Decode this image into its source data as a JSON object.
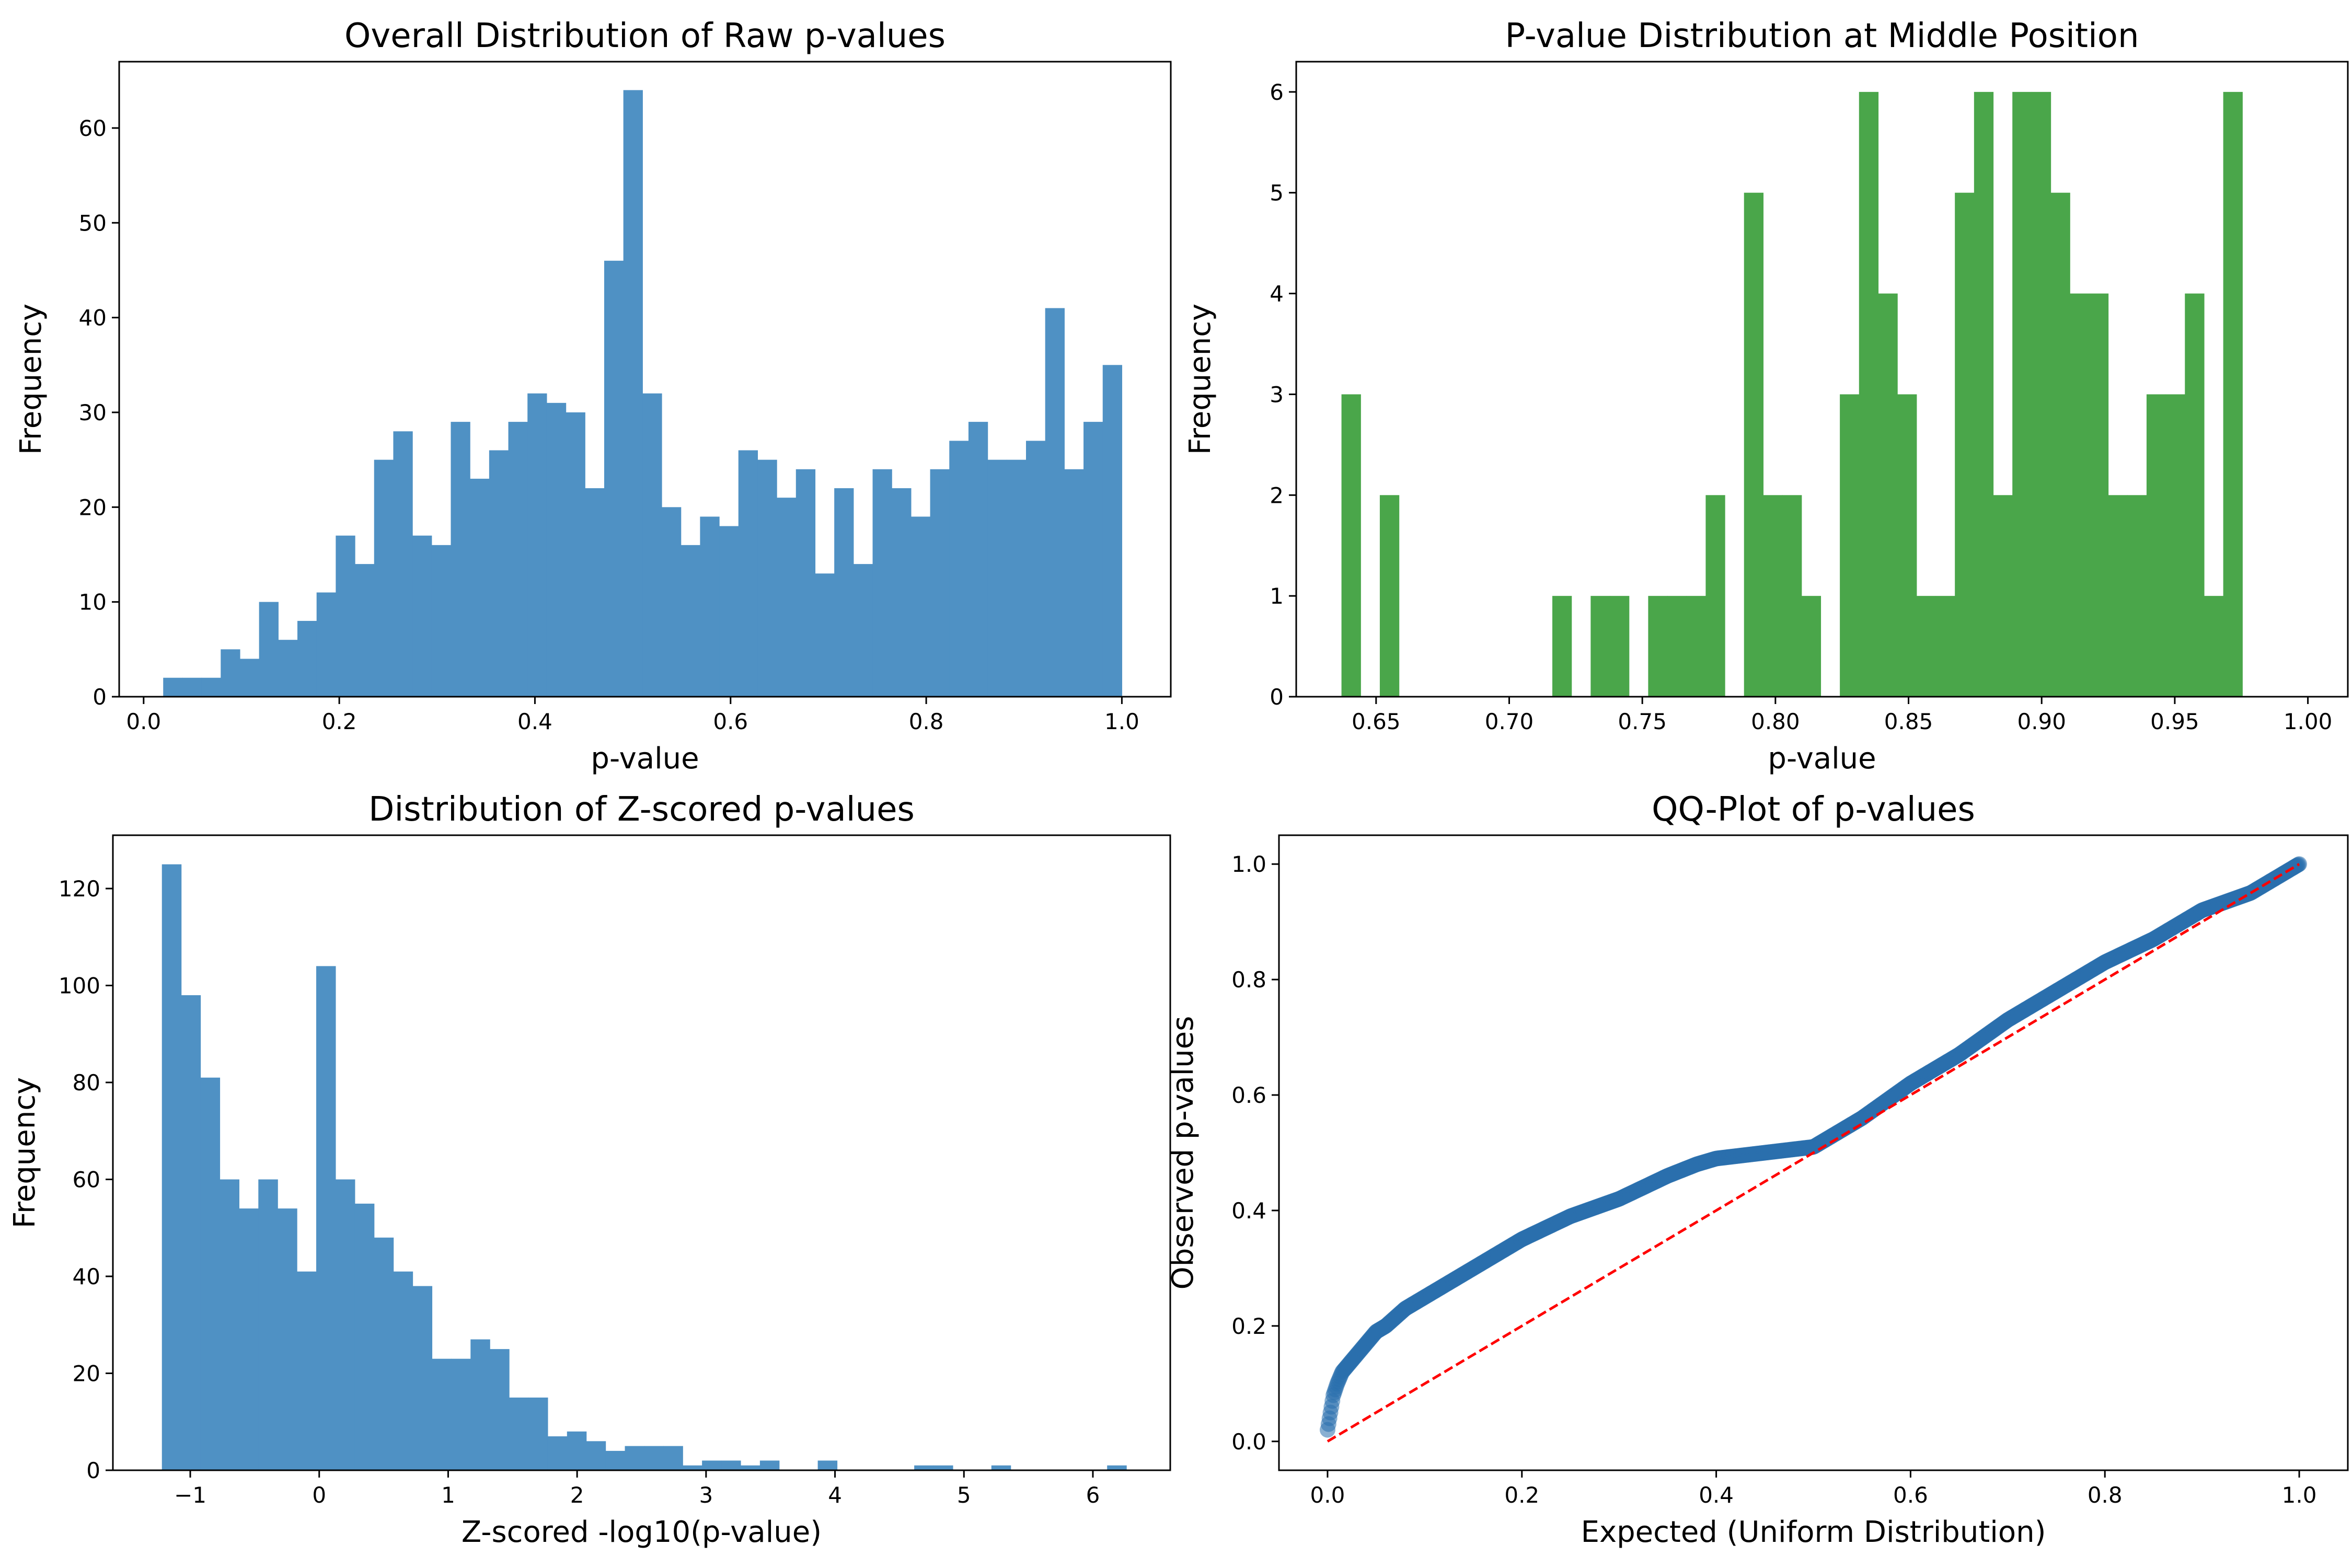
{
  "figure": {
    "background": "#ffffff"
  },
  "chart_data": [
    {
      "id": "raw",
      "type": "bar",
      "title": "Overall Distribution of Raw p-values",
      "xlabel": "p-value",
      "ylabel": "Frequency",
      "color": "#4f91c4",
      "grid": false,
      "xlim": [
        -0.025,
        1.05
      ],
      "ylim": [
        0,
        67
      ],
      "xticks": [
        0.0,
        0.2,
        0.4,
        0.6,
        0.8,
        1.0
      ],
      "xtick_labels": [
        "0.0",
        "0.2",
        "0.4",
        "0.6",
        "0.8",
        "1.0"
      ],
      "yticks": [
        0,
        10,
        20,
        30,
        40,
        50,
        60
      ],
      "ytick_labels": [
        "0",
        "10",
        "20",
        "30",
        "40",
        "50",
        "60"
      ],
      "bins": {
        "start": 0.02,
        "width": 0.0196
      },
      "values": [
        2,
        2,
        2,
        5,
        4,
        10,
        6,
        8,
        11,
        17,
        14,
        25,
        28,
        17,
        16,
        29,
        23,
        26,
        29,
        32,
        31,
        30,
        22,
        46,
        64,
        32,
        20,
        16,
        19,
        18,
        26,
        25,
        21,
        24,
        13,
        22,
        14,
        24,
        22,
        19,
        24,
        27,
        29,
        25,
        25,
        27,
        41,
        24,
        29,
        35
      ]
    },
    {
      "id": "middle",
      "type": "bar",
      "title": "P-value Distribution at Middle Position",
      "xlabel": "p-value",
      "ylabel": "Frequency",
      "color": "#4aa64a",
      "grid": false,
      "xlim": [
        0.62,
        1.015
      ],
      "ylim": [
        0,
        6.3
      ],
      "xticks": [
        0.65,
        0.7,
        0.75,
        0.8,
        0.85,
        0.9,
        0.95,
        1.0
      ],
      "xtick_labels": [
        "0.65",
        "0.70",
        "0.75",
        "0.80",
        "0.85",
        "0.90",
        "0.95",
        "1.00"
      ],
      "yticks": [
        0,
        1,
        2,
        3,
        4,
        5,
        6
      ],
      "ytick_labels": [
        "0",
        "1",
        "2",
        "3",
        "4",
        "5",
        "6"
      ],
      "bins": {
        "start": 0.637,
        "width": 0.0072
      },
      "values": [
        3,
        0,
        2,
        0,
        0,
        0,
        0,
        0,
        0,
        0,
        0,
        1,
        0,
        1,
        1,
        0,
        1,
        1,
        1,
        2,
        0,
        5,
        2,
        2,
        1,
        0,
        3,
        6,
        4,
        3,
        1,
        1,
        5,
        6,
        2,
        6,
        6,
        5,
        4,
        4,
        2,
        2,
        3,
        3,
        4,
        1,
        6
      ]
    },
    {
      "id": "zscore",
      "type": "bar",
      "title": "Distribution of Z-scored p-values",
      "xlabel": "Z-scored -log10(p-value)",
      "ylabel": "Frequency",
      "color": "#4f91c4",
      "grid": false,
      "xlim": [
        -1.6,
        6.6
      ],
      "ylim": [
        0,
        131
      ],
      "xticks": [
        -1,
        0,
        1,
        2,
        3,
        4,
        5,
        6
      ],
      "xtick_labels": [
        "−1",
        "0",
        "1",
        "2",
        "3",
        "4",
        "5",
        "6"
      ],
      "yticks": [
        0,
        20,
        40,
        60,
        80,
        100,
        120
      ],
      "ytick_labels": [
        "0",
        "20",
        "40",
        "60",
        "80",
        "100",
        "120"
      ],
      "bins": {
        "start": -1.22,
        "width": 0.1496
      },
      "values": [
        125,
        98,
        81,
        60,
        54,
        60,
        54,
        41,
        104,
        60,
        55,
        48,
        41,
        38,
        23,
        23,
        27,
        25,
        15,
        15,
        7,
        8,
        6,
        4,
        5,
        5,
        5,
        1,
        2,
        2,
        1,
        2,
        0,
        0,
        2,
        0,
        0,
        0,
        0,
        1,
        1,
        0,
        0,
        1,
        0,
        0,
        0,
        0,
        0,
        1
      ]
    },
    {
      "id": "qq",
      "type": "scatter",
      "title": "QQ-Plot of p-values",
      "xlabel": "Expected (Uniform Distribution)",
      "ylabel": "Observed p-values",
      "color": "#2a6fad",
      "reference_line_color": "#ff0000",
      "reference_line": {
        "x": [
          0,
          1
        ],
        "y": [
          0,
          1
        ],
        "style": "dashed"
      },
      "grid": false,
      "xlim": [
        -0.05,
        1.05
      ],
      "ylim": [
        -0.05,
        1.05
      ],
      "xticks": [
        0.0,
        0.2,
        0.4,
        0.6,
        0.8,
        1.0
      ],
      "xtick_labels": [
        "0.0",
        "0.2",
        "0.4",
        "0.6",
        "0.8",
        "1.0"
      ],
      "yticks": [
        0.0,
        0.2,
        0.4,
        0.6,
        0.8,
        1.0
      ],
      "ytick_labels": [
        "0.0",
        "0.2",
        "0.4",
        "0.6",
        "0.8",
        "1.0"
      ],
      "curve": {
        "x": [
          0.0,
          0.003,
          0.006,
          0.01,
          0.015,
          0.02,
          0.03,
          0.04,
          0.05,
          0.06,
          0.08,
          0.1,
          0.12,
          0.15,
          0.18,
          0.2,
          0.25,
          0.3,
          0.35,
          0.38,
          0.4,
          0.45,
          0.5,
          0.52,
          0.55,
          0.6,
          0.65,
          0.7,
          0.75,
          0.8,
          0.85,
          0.9,
          0.95,
          0.98,
          1.0
        ],
        "y": [
          0.02,
          0.05,
          0.08,
          0.1,
          0.12,
          0.13,
          0.15,
          0.17,
          0.19,
          0.2,
          0.23,
          0.25,
          0.27,
          0.3,
          0.33,
          0.35,
          0.39,
          0.42,
          0.46,
          0.48,
          0.49,
          0.5,
          0.51,
          0.53,
          0.56,
          0.62,
          0.67,
          0.73,
          0.78,
          0.83,
          0.87,
          0.92,
          0.95,
          0.98,
          1.0
        ]
      }
    }
  ]
}
